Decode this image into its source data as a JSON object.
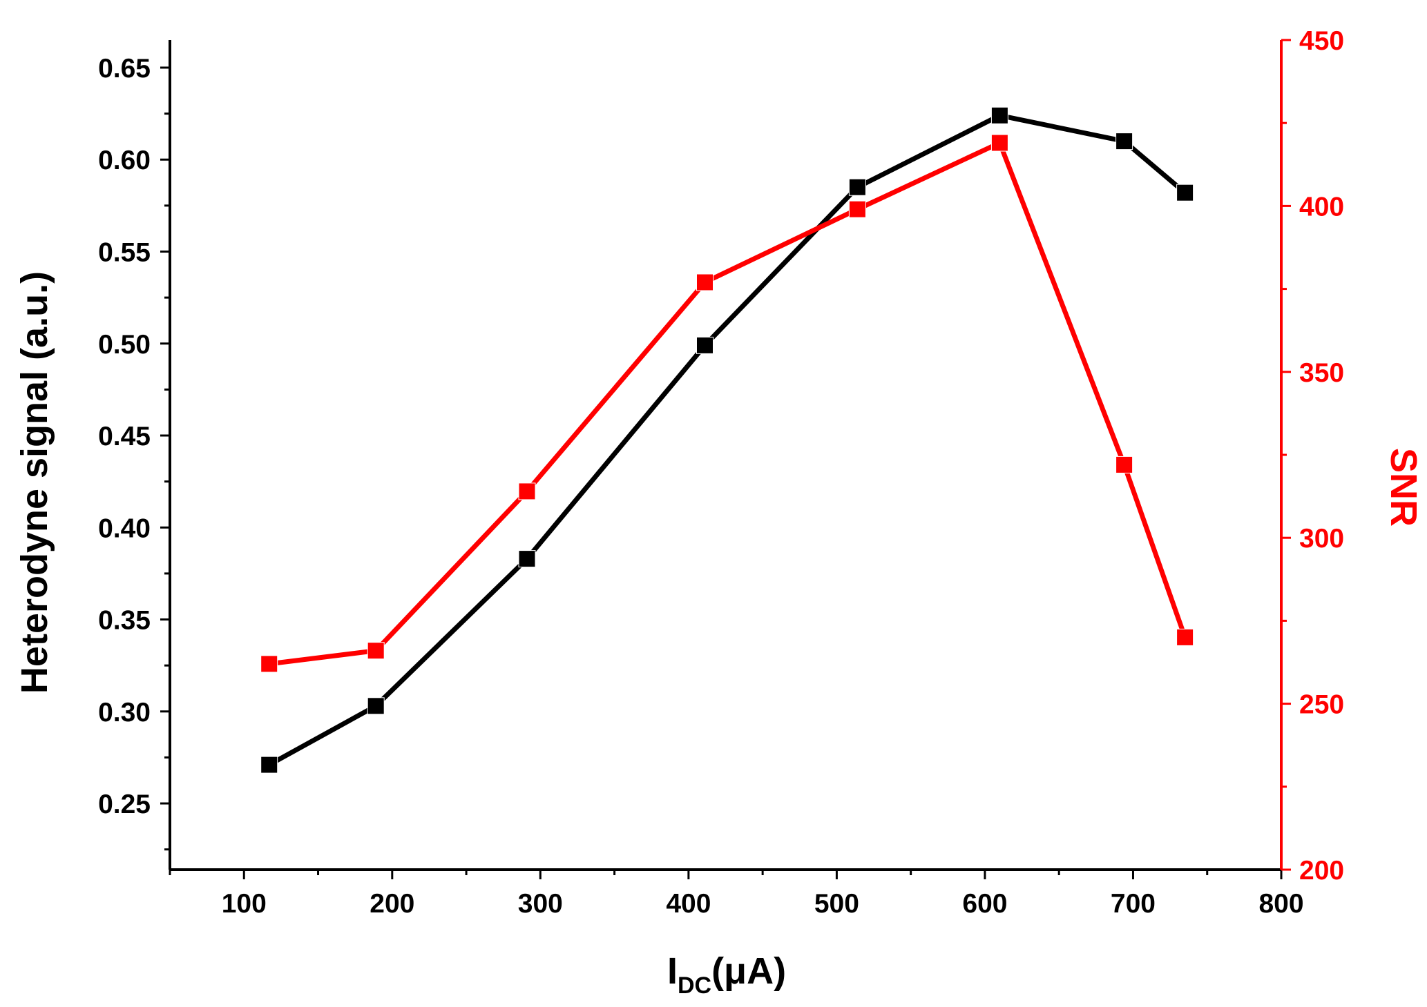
{
  "chart_data": {
    "type": "line",
    "title": "",
    "xlabel_main": "I",
    "xlabel_sub": "DC",
    "xlabel_tail": "(μA)",
    "ylabel": "Heterodyne signal (a.u.)",
    "y2label": "SNR",
    "xlim": [
      50,
      800
    ],
    "ylim": [
      0.214,
      0.665
    ],
    "y2lim": [
      200,
      450
    ],
    "x_ticks": [
      "100",
      "200",
      "300",
      "400",
      "500",
      "600",
      "700",
      "800"
    ],
    "y_ticks": [
      "0.25",
      "0.30",
      "0.35",
      "0.40",
      "0.45",
      "0.50",
      "0.55",
      "0.60",
      "0.65"
    ],
    "y2_ticks": [
      "200",
      "250",
      "300",
      "350",
      "400",
      "450"
    ],
    "grid": false,
    "series": [
      {
        "axis": "left",
        "color": "#000000",
        "marker": "square",
        "x": [
          117,
          189,
          291,
          411,
          514,
          610,
          694,
          735
        ],
        "y": [
          0.271,
          0.303,
          0.383,
          0.499,
          0.585,
          0.624,
          0.61,
          0.582
        ]
      },
      {
        "axis": "right",
        "color": "#ff0000",
        "marker": "square",
        "x": [
          117,
          189,
          291,
          411,
          514,
          610,
          694,
          735
        ],
        "y": [
          262,
          266,
          314,
          377,
          399,
          419,
          322,
          270
        ]
      }
    ]
  }
}
